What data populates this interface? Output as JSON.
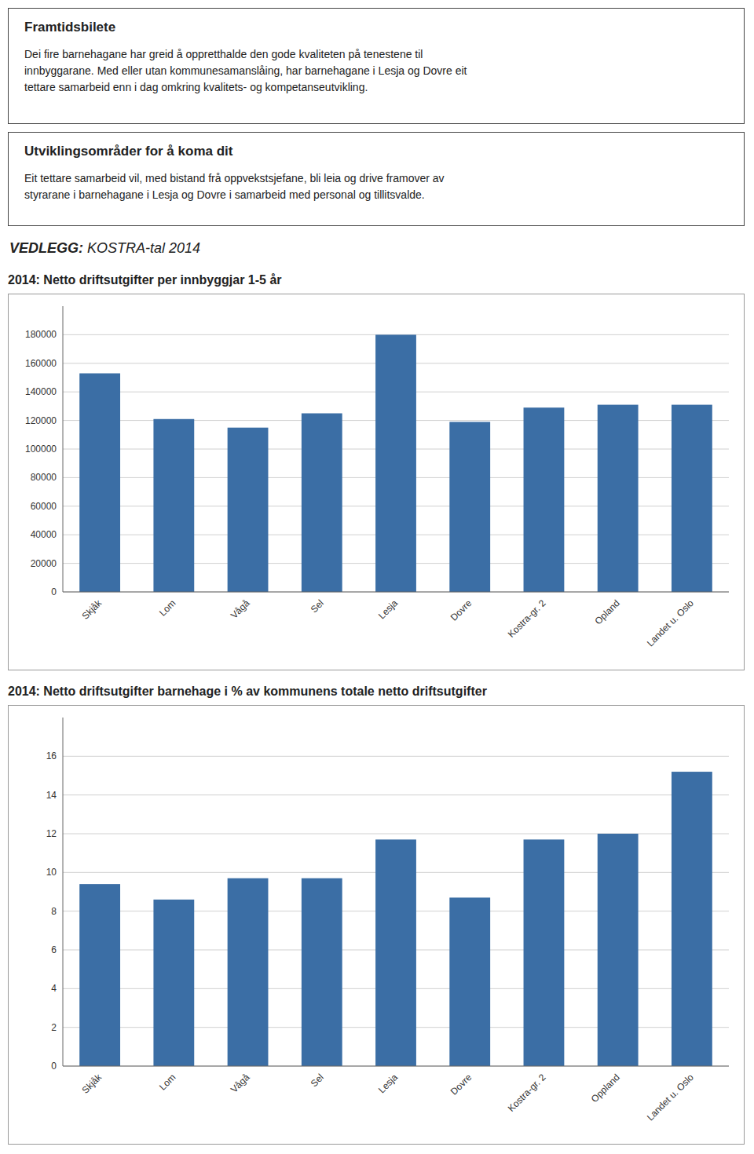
{
  "header_boxes": [
    {
      "title": "Framtidsbilete",
      "text": "Dei fire barnehagane har greid å oppretthalde den gode kvaliteten på tenestene til\ninnbyggarane. Med eller utan kommunesamanslåing, har barnehagane i Lesja og Dovre eit\ntettare samarbeid enn i dag omkring kvalitets- og kompetanseutvikling."
    },
    {
      "title": "Utviklingsområder for å koma dit",
      "text": "Eit tettare samarbeid vil, med bistand frå oppvekstsjefane, bli leia og drive framover av\nstyrarane i barnehagane i Lesja og Dovre i samarbeid med personal og tillitsvalde."
    }
  ],
  "appendix_label": {
    "bold": "VEDLEGG: ",
    "text": "KOSTRA-tal 2014"
  },
  "chart_data": [
    {
      "type": "bar",
      "title": "2014: Netto driftsutgifter per innbyggjar 1-5 år",
      "categories": [
        "Skjåk",
        "Lom",
        "Vågå",
        "Sel",
        "Lesja",
        "Dovre",
        "Kostra-gr. 2",
        "Opland",
        "Landet u. Oslo"
      ],
      "values": [
        153000,
        121000,
        115000,
        125000,
        180000,
        119000,
        129000,
        131000,
        131000
      ],
      "color": "#3B6EA5",
      "ylim": [
        0,
        200000
      ],
      "yticks": [
        0,
        20000,
        40000,
        60000,
        80000,
        100000,
        120000,
        140000,
        160000,
        180000
      ],
      "grid": true
    },
    {
      "type": "bar",
      "title": "2014: Netto driftsutgifter barnehage i % av kommunens totale netto driftsutgifter",
      "categories": [
        "Skjåk",
        "Lom",
        "Vågå",
        "Sel",
        "Lesja",
        "Dovre",
        "Kostra-gr. 2",
        "Oppland",
        "Landet u. Oslo"
      ],
      "values": [
        9.4,
        8.6,
        9.7,
        9.7,
        11.7,
        8.7,
        11.7,
        12.0,
        15.2
      ],
      "color": "#3B6EA5",
      "ylim": [
        0,
        18
      ],
      "yticks": [
        0,
        2,
        4,
        6,
        8,
        10,
        12,
        14,
        16
      ],
      "grid": true
    }
  ]
}
